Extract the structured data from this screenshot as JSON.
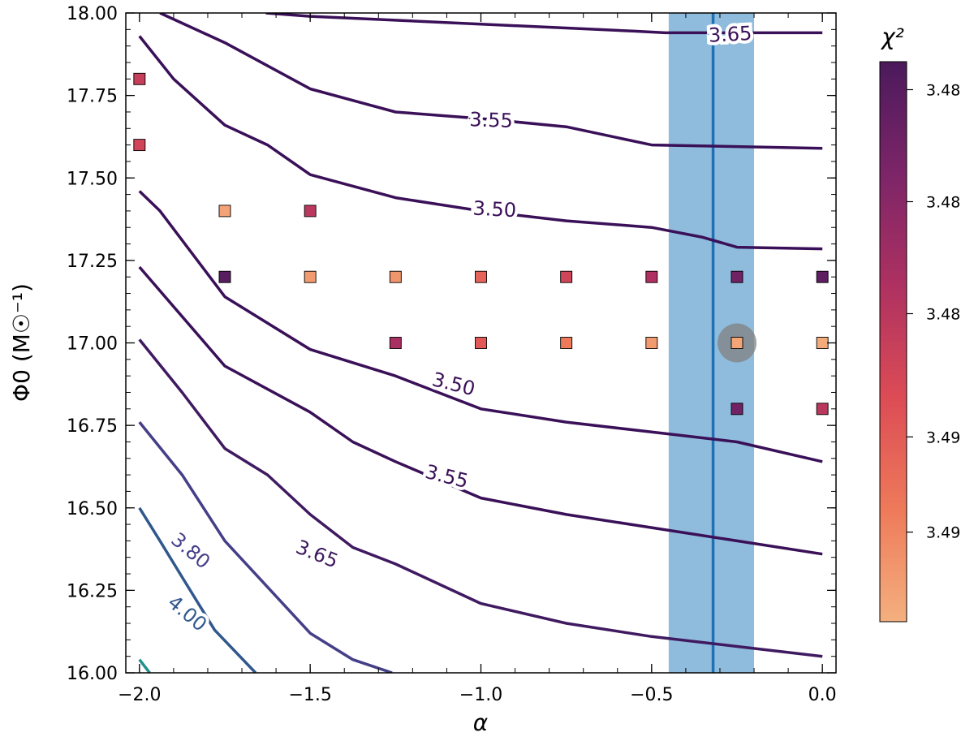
{
  "chart_data": {
    "type": "scatter",
    "xlabel": "α",
    "ylabel": "Φ0 (M☉⁻¹)",
    "xlim": [
      -2.04,
      0.04
    ],
    "ylim": [
      16.0,
      18.0
    ],
    "x_ticks": [
      -2.0,
      -1.5,
      -1.0,
      -0.5,
      0.0
    ],
    "x_tick_labels": [
      "−2.0",
      "−1.5",
      "−1.0",
      "−0.5",
      "0.0"
    ],
    "y_ticks": [
      16.0,
      16.25,
      16.5,
      16.75,
      17.0,
      17.25,
      17.5,
      17.75,
      18.0
    ],
    "y_tick_labels": [
      "16.00",
      "16.25",
      "16.50",
      "16.75",
      "17.00",
      "17.25",
      "17.50",
      "17.75",
      "18.00"
    ],
    "colorbar": {
      "label": "χ²",
      "tick_labels": [
        "3.49",
        "3.49",
        "3.48",
        "3.48",
        "3.48"
      ],
      "tick_fractions": [
        0.84,
        0.67,
        0.45,
        0.25,
        0.05
      ],
      "colors": [
        "#f4b07f",
        "#ee7a5a",
        "#dc4c55",
        "#ae3161",
        "#7c2568",
        "#4b1a5c"
      ]
    },
    "best_fit": {
      "alpha": -0.32,
      "alpha_low": -0.45,
      "alpha_high": -0.2,
      "marker_alpha": -0.25,
      "marker_phi0": 17.0
    },
    "band_color": "#8fbcdc",
    "line_color": "#2070b4",
    "marker_color": "#808080",
    "points": [
      {
        "x": -2.0,
        "y": 17.8,
        "c": 0.5
      },
      {
        "x": -2.0,
        "y": 17.6,
        "c": 0.45
      },
      {
        "x": -1.75,
        "y": 17.4,
        "c": 0.05
      },
      {
        "x": -1.5,
        "y": 17.4,
        "c": 0.55
      },
      {
        "x": -1.75,
        "y": 17.2,
        "c": 0.95
      },
      {
        "x": -1.5,
        "y": 17.2,
        "c": 0.08
      },
      {
        "x": -1.25,
        "y": 17.2,
        "c": 0.1
      },
      {
        "x": -1.0,
        "y": 17.2,
        "c": 0.3
      },
      {
        "x": -0.75,
        "y": 17.2,
        "c": 0.45
      },
      {
        "x": -0.5,
        "y": 17.2,
        "c": 0.6
      },
      {
        "x": -0.25,
        "y": 17.2,
        "c": 0.85
      },
      {
        "x": 0.0,
        "y": 17.2,
        "c": 0.92
      },
      {
        "x": -1.25,
        "y": 17.0,
        "c": 0.62
      },
      {
        "x": -1.0,
        "y": 17.0,
        "c": 0.35
      },
      {
        "x": -0.75,
        "y": 17.0,
        "c": 0.2
      },
      {
        "x": -0.5,
        "y": 17.0,
        "c": 0.08
      },
      {
        "x": -0.25,
        "y": 17.0,
        "c": 0.04
      },
      {
        "x": 0.0,
        "y": 17.0,
        "c": 0.02
      },
      {
        "x": -0.25,
        "y": 16.8,
        "c": 0.85
      },
      {
        "x": 0.0,
        "y": 16.8,
        "c": 0.55
      }
    ],
    "contours": [
      {
        "level": "3.65",
        "color": "#3a1058",
        "label": {
          "x": -0.27,
          "y": 17.935,
          "angle": -3
        },
        "points": [
          [
            -1.63,
            18.0
          ],
          [
            -1.5,
            17.99
          ],
          [
            -0.55,
            17.945
          ],
          [
            -0.46,
            17.94
          ],
          [
            0.0,
            17.94
          ]
        ]
      },
      {
        "level": "3.55",
        "color": "#3a1058",
        "label": {
          "x": -0.97,
          "y": 17.675,
          "angle": 2
        },
        "points": [
          [
            -1.94,
            18.0
          ],
          [
            -1.75,
            17.91
          ],
          [
            -1.5,
            17.77
          ],
          [
            -1.25,
            17.7
          ],
          [
            -1.0,
            17.68
          ],
          [
            -0.75,
            17.655
          ],
          [
            -0.5,
            17.6
          ],
          [
            -0.25,
            17.595
          ],
          [
            0.0,
            17.59
          ]
        ]
      },
      {
        "level": "3.50",
        "color": "#3a1058",
        "label": {
          "x": -0.96,
          "y": 17.405,
          "angle": 3
        },
        "points": [
          [
            -2.0,
            17.93
          ],
          [
            -1.9,
            17.8
          ],
          [
            -1.75,
            17.66
          ],
          [
            -1.625,
            17.6
          ],
          [
            -1.5,
            17.51
          ],
          [
            -1.25,
            17.44
          ],
          [
            -1.0,
            17.4
          ],
          [
            -0.75,
            17.37
          ],
          [
            -0.5,
            17.35
          ],
          [
            -0.35,
            17.32
          ],
          [
            -0.25,
            17.29
          ],
          [
            0.0,
            17.285
          ]
        ]
      },
      {
        "level": "3.50",
        "color": "#3a1058",
        "label": {
          "x": -1.08,
          "y": 16.875,
          "angle": 14
        },
        "points": [
          [
            -2.0,
            17.46
          ],
          [
            -1.94,
            17.4
          ],
          [
            -1.75,
            17.14
          ],
          [
            -1.5,
            16.98
          ],
          [
            -1.25,
            16.9
          ],
          [
            -1.0,
            16.8
          ],
          [
            -0.75,
            16.76
          ],
          [
            -0.5,
            16.73
          ],
          [
            -0.25,
            16.7
          ],
          [
            0.0,
            16.64
          ]
        ]
      },
      {
        "level": "3.55",
        "color": "#3a1058",
        "label": {
          "x": -1.1,
          "y": 16.595,
          "angle": 14
        },
        "points": [
          [
            -2.0,
            17.23
          ],
          [
            -1.75,
            16.93
          ],
          [
            -1.5,
            16.79
          ],
          [
            -1.375,
            16.7
          ],
          [
            -1.25,
            16.64
          ],
          [
            -1.0,
            16.53
          ],
          [
            -0.75,
            16.48
          ],
          [
            -0.5,
            16.44
          ],
          [
            -0.25,
            16.4
          ],
          [
            0.0,
            16.36
          ]
        ]
      },
      {
        "level": "3.65",
        "color": "#3f1a60",
        "label": {
          "x": -1.48,
          "y": 16.36,
          "angle": 22
        },
        "points": [
          [
            -2.0,
            17.01
          ],
          [
            -1.875,
            16.85
          ],
          [
            -1.75,
            16.68
          ],
          [
            -1.625,
            16.6
          ],
          [
            -1.5,
            16.48
          ],
          [
            -1.375,
            16.38
          ],
          [
            -1.25,
            16.33
          ],
          [
            -1.0,
            16.21
          ],
          [
            -0.75,
            16.15
          ],
          [
            -0.5,
            16.11
          ],
          [
            -0.25,
            16.08
          ],
          [
            0.0,
            16.05
          ]
        ]
      },
      {
        "level": "3.80",
        "color": "#453f88",
        "label": {
          "x": -1.85,
          "y": 16.37,
          "angle": 40
        },
        "points": [
          [
            -2.0,
            16.76
          ],
          [
            -1.875,
            16.6
          ],
          [
            -1.75,
            16.4
          ],
          [
            -1.625,
            16.26
          ],
          [
            -1.5,
            16.12
          ],
          [
            -1.375,
            16.04
          ],
          [
            -1.26,
            16.0
          ]
        ]
      },
      {
        "level": "4.00",
        "color": "#31588c",
        "label": {
          "x": -1.86,
          "y": 16.18,
          "angle": 40
        },
        "points": [
          [
            -2.0,
            16.5
          ],
          [
            -1.94,
            16.4
          ],
          [
            -1.875,
            16.29
          ],
          [
            -1.78,
            16.13
          ],
          [
            -1.66,
            16.0
          ]
        ]
      },
      {
        "level": "",
        "color": "#21918c",
        "label": null,
        "points": [
          [
            -2.0,
            16.04
          ],
          [
            -1.97,
            16.0
          ]
        ]
      }
    ]
  }
}
